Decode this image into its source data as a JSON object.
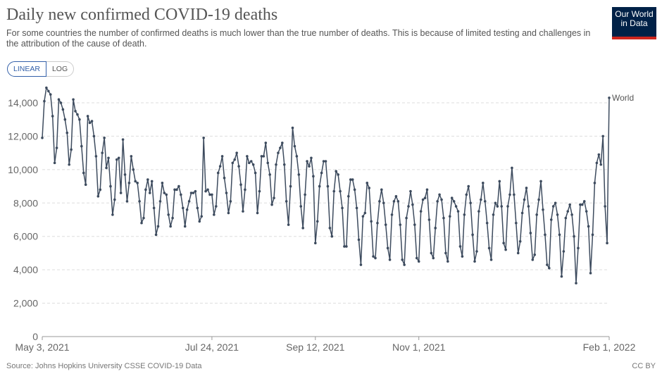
{
  "header": {
    "title": "Daily new confirmed COVID-19 deaths",
    "subtitle": "For some countries the number of confirmed deaths is much lower than the true number of deaths. This is because of limited testing and challenges in the attribution of the cause of death.",
    "buttons": [
      "LINEAR",
      "LOG"
    ],
    "logo": "Our World in Data"
  },
  "footer": {
    "source": "Source: Johns Hopkins University CSSE COVID-19 Data",
    "license": "CC BY"
  },
  "chart_data": {
    "type": "line",
    "grid": true,
    "x": [
      "2021-05-03",
      "2021-05-04",
      "2021-05-05",
      "2021-05-06",
      "2021-05-07",
      "2021-05-08",
      "2021-05-09",
      "2021-05-10",
      "2021-05-11",
      "2021-05-12",
      "2021-05-13",
      "2021-05-14",
      "2021-05-15",
      "2021-05-16",
      "2021-05-17",
      "2021-05-18",
      "2021-05-19",
      "2021-05-20",
      "2021-05-21",
      "2021-05-22",
      "2021-05-23",
      "2021-05-24",
      "2021-05-25",
      "2021-05-26",
      "2021-05-27",
      "2021-05-28",
      "2021-05-29",
      "2021-05-30",
      "2021-05-31",
      "2021-06-01",
      "2021-06-02",
      "2021-06-03",
      "2021-06-04",
      "2021-06-05",
      "2021-06-06",
      "2021-06-07",
      "2021-06-08",
      "2021-06-09",
      "2021-06-10",
      "2021-06-11",
      "2021-06-12",
      "2021-06-13",
      "2021-06-14",
      "2021-06-15",
      "2021-06-16",
      "2021-06-17",
      "2021-06-18",
      "2021-06-19",
      "2021-06-20",
      "2021-06-21",
      "2021-06-22",
      "2021-06-23",
      "2021-06-24",
      "2021-06-25",
      "2021-06-26",
      "2021-06-27",
      "2021-06-28",
      "2021-06-29",
      "2021-06-30",
      "2021-07-01",
      "2021-07-02",
      "2021-07-03",
      "2021-07-04",
      "2021-07-05",
      "2021-07-06",
      "2021-07-07",
      "2021-07-08",
      "2021-07-09",
      "2021-07-10",
      "2021-07-11",
      "2021-07-12",
      "2021-07-13",
      "2021-07-14",
      "2021-07-15",
      "2021-07-16",
      "2021-07-17",
      "2021-07-18",
      "2021-07-19",
      "2021-07-20",
      "2021-07-21",
      "2021-07-22",
      "2021-07-23",
      "2021-07-24",
      "2021-07-25",
      "2021-07-26",
      "2021-07-27",
      "2021-07-28",
      "2021-07-29",
      "2021-07-30",
      "2021-07-31",
      "2021-08-01",
      "2021-08-02",
      "2021-08-03",
      "2021-08-04",
      "2021-08-05",
      "2021-08-06",
      "2021-08-07",
      "2021-08-08",
      "2021-08-09",
      "2021-08-10",
      "2021-08-11",
      "2021-08-12",
      "2021-08-13",
      "2021-08-14",
      "2021-08-15",
      "2021-08-16",
      "2021-08-17",
      "2021-08-18",
      "2021-08-19",
      "2021-08-20",
      "2021-08-21",
      "2021-08-22",
      "2021-08-23",
      "2021-08-24",
      "2021-08-25",
      "2021-08-26",
      "2021-08-27",
      "2021-08-28",
      "2021-08-29",
      "2021-08-30",
      "2021-08-31",
      "2021-09-01",
      "2021-09-02",
      "2021-09-03",
      "2021-09-04",
      "2021-09-05",
      "2021-09-06",
      "2021-09-07",
      "2021-09-08",
      "2021-09-09",
      "2021-09-10",
      "2021-09-11",
      "2021-09-12",
      "2021-09-13",
      "2021-09-14",
      "2021-09-15",
      "2021-09-16",
      "2021-09-17",
      "2021-09-18",
      "2021-09-19",
      "2021-09-20",
      "2021-09-21",
      "2021-09-22",
      "2021-09-23",
      "2021-09-24",
      "2021-09-25",
      "2021-09-26",
      "2021-09-27",
      "2021-09-28",
      "2021-09-29",
      "2021-09-30",
      "2021-10-01",
      "2021-10-02",
      "2021-10-03",
      "2021-10-04",
      "2021-10-05",
      "2021-10-06",
      "2021-10-07",
      "2021-10-08",
      "2021-10-09",
      "2021-10-10",
      "2021-10-11",
      "2021-10-12",
      "2021-10-13",
      "2021-10-14",
      "2021-10-15",
      "2021-10-16",
      "2021-10-17",
      "2021-10-18",
      "2021-10-19",
      "2021-10-20",
      "2021-10-21",
      "2021-10-22",
      "2021-10-23",
      "2021-10-24",
      "2021-10-25",
      "2021-10-26",
      "2021-10-27",
      "2021-10-28",
      "2021-10-29",
      "2021-10-30",
      "2021-10-31",
      "2021-11-01",
      "2021-11-02",
      "2021-11-03",
      "2021-11-04",
      "2021-11-05",
      "2021-11-06",
      "2021-11-07",
      "2021-11-08",
      "2021-11-09",
      "2021-11-10",
      "2021-11-11",
      "2021-11-12",
      "2021-11-13",
      "2021-11-14",
      "2021-11-15",
      "2021-11-16",
      "2021-11-17",
      "2021-11-18",
      "2021-11-19",
      "2021-11-20",
      "2021-11-21",
      "2021-11-22",
      "2021-11-23",
      "2021-11-24",
      "2021-11-25",
      "2021-11-26",
      "2021-11-27",
      "2021-11-28",
      "2021-11-29",
      "2021-11-30",
      "2021-12-01",
      "2021-12-02",
      "2021-12-03",
      "2021-12-04",
      "2021-12-05",
      "2021-12-06",
      "2021-12-07",
      "2021-12-08",
      "2021-12-09",
      "2021-12-10",
      "2021-12-11",
      "2021-12-12",
      "2021-12-13",
      "2021-12-14",
      "2021-12-15",
      "2021-12-16",
      "2021-12-17",
      "2021-12-18",
      "2021-12-19",
      "2021-12-20",
      "2021-12-21",
      "2021-12-22",
      "2021-12-23",
      "2021-12-24",
      "2021-12-25",
      "2021-12-26",
      "2021-12-27",
      "2021-12-28",
      "2021-12-29",
      "2021-12-30",
      "2021-12-31",
      "2022-01-01",
      "2022-01-02",
      "2022-01-03",
      "2022-01-04",
      "2022-01-05",
      "2022-01-06",
      "2022-01-07",
      "2022-01-08",
      "2022-01-09",
      "2022-01-10",
      "2022-01-11",
      "2022-01-12",
      "2022-01-13",
      "2022-01-14",
      "2022-01-15",
      "2022-01-16",
      "2022-01-17",
      "2022-01-18",
      "2022-01-19",
      "2022-01-20",
      "2022-01-21",
      "2022-01-22",
      "2022-01-23",
      "2022-01-24",
      "2022-01-25",
      "2022-01-26",
      "2022-01-27",
      "2022-01-28",
      "2022-01-29",
      "2022-01-30",
      "2022-01-31",
      "2022-02-01"
    ],
    "series": [
      {
        "name": "World",
        "color": "#3d4b5e",
        "values": [
          11900,
          14100,
          14900,
          14700,
          14500,
          13200,
          10400,
          11300,
          14200,
          14000,
          13600,
          13000,
          12200,
          10300,
          11200,
          14200,
          13500,
          13300,
          13000,
          11400,
          9800,
          9100,
          13200,
          12800,
          12900,
          12000,
          10800,
          8400,
          8800,
          11000,
          11900,
          10100,
          10700,
          9000,
          7300,
          8200,
          10600,
          10700,
          8600,
          11800,
          9700,
          8100,
          9200,
          10800,
          10000,
          9300,
          9200,
          8100,
          6800,
          7100,
          8800,
          9400,
          8600,
          9300,
          7700,
          6100,
          6600,
          8100,
          9200,
          8600,
          8500,
          7300,
          6600,
          7100,
          8800,
          8800,
          9000,
          8500,
          7700,
          6600,
          7600,
          8100,
          8600,
          8600,
          8700,
          7700,
          6900,
          7200,
          11900,
          8700,
          8800,
          8500,
          8500,
          7300,
          7800,
          9800,
          10200,
          10800,
          9500,
          8600,
          7400,
          8100,
          10400,
          10600,
          11000,
          10200,
          9100,
          7500,
          8800,
          10800,
          10400,
          10500,
          10300,
          9800,
          7400,
          8700,
          10800,
          10800,
          11600,
          10400,
          9700,
          7900,
          8300,
          10300,
          11000,
          11300,
          11600,
          10300,
          8100,
          6700,
          9000,
          12500,
          11400,
          10800,
          9700,
          7800,
          6500,
          8500,
          10500,
          10200,
          10700,
          9600,
          5600,
          6900,
          9000,
          9800,
          10500,
          10500,
          9000,
          6500,
          6000,
          8700,
          9900,
          9700,
          8700,
          7700,
          5400,
          5400,
          8400,
          9400,
          9400,
          8800,
          7700,
          5800,
          4300,
          7200,
          7400,
          9200,
          8900,
          6900,
          4800,
          4700,
          6800,
          8100,
          8800,
          8000,
          6700,
          5300,
          4600,
          7300,
          8100,
          8400,
          8100,
          6700,
          4600,
          4300,
          7100,
          7800,
          8700,
          7900,
          6700,
          4700,
          4500,
          7500,
          8200,
          8300,
          8800,
          7000,
          5000,
          4700,
          6500,
          8100,
          8500,
          8200,
          7100,
          5000,
          4500,
          7200,
          8300,
          8100,
          7800,
          7500,
          5400,
          4800,
          7300,
          8500,
          9000,
          8000,
          6100,
          4500,
          5100,
          7500,
          8200,
          9200,
          8100,
          6800,
          5300,
          4600,
          7300,
          8000,
          7800,
          9300,
          7800,
          5600,
          5200,
          7800,
          8500,
          10100,
          8500,
          6800,
          5000,
          5700,
          7400,
          8200,
          8900,
          7800,
          6200,
          4600,
          4900,
          7300,
          8200,
          9300,
          7600,
          6100,
          4300,
          4100,
          7000,
          7800,
          8000,
          7300,
          6100,
          3600,
          5100,
          7100,
          7500,
          7900,
          7300,
          6000,
          3200,
          5300,
          7900,
          7900,
          8100,
          7500,
          6600,
          3800,
          6100,
          9200,
          10400,
          10900,
          10300,
          12000,
          7800,
          5600,
          14300
        ]
      }
    ],
    "xlim": [
      "2021-05-03",
      "2022-02-01"
    ],
    "xticks": [
      {
        "value": "2021-05-03",
        "label": "May 3, 2021"
      },
      {
        "value": "2021-07-24",
        "label": "Jul 24, 2021"
      },
      {
        "value": "2021-09-12",
        "label": "Sep 12, 2021"
      },
      {
        "value": "2021-11-01",
        "label": "Nov 1, 2021"
      },
      {
        "value": "2022-02-01",
        "label": "Feb 1, 2022"
      }
    ],
    "ylim": [
      0,
      14000
    ],
    "yticks": [
      0,
      {
        "value": 2000,
        "label": "2,000"
      },
      {
        "value": 4000,
        "label": "4,000"
      },
      {
        "value": 6000,
        "label": "6,000"
      },
      {
        "value": 8000,
        "label": "8,000"
      },
      {
        "value": 10000,
        "label": "10,000"
      },
      {
        "value": 12000,
        "label": "12,000"
      },
      {
        "value": 14000,
        "label": "14,000"
      }
    ]
  }
}
